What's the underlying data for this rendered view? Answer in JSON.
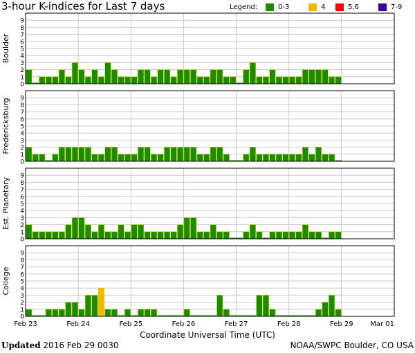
{
  "header": {
    "title": "3-hour K-indices for Last 7 days",
    "legend_title": "Legend:",
    "legend": [
      {
        "label": "0-3",
        "color": "#1a8c00"
      },
      {
        "label": "4",
        "color": "#f5b800"
      },
      {
        "label": "5,6",
        "color": "#ff0000"
      },
      {
        "label": "7-9",
        "color": "#3d0099"
      }
    ]
  },
  "footer": {
    "updated_label": "Updated",
    "updated_value": "2016 Feb 29 0030",
    "credit": "NOAA/SWPC Boulder, CO USA"
  },
  "chart_data": {
    "type": "bar",
    "xlabel": "Coordinate Universal Time (UTC)",
    "x_tick_labels": [
      "Feb 23",
      "Feb 24",
      "Feb 25",
      "Feb 26",
      "Feb 27",
      "Feb 28",
      "Feb 29",
      "Mar 01"
    ],
    "y_ticks": [
      0,
      1,
      2,
      3,
      4,
      5,
      6,
      7,
      8,
      9
    ],
    "ylim": [
      0,
      9
    ],
    "bars_per_day": 8,
    "grid": true,
    "panels": [
      {
        "ylabel": "Boulder",
        "values": [
          2,
          0,
          1,
          1,
          1,
          2,
          1,
          3,
          2,
          1,
          2,
          1,
          3,
          2,
          1,
          1,
          1,
          2,
          2,
          1,
          2,
          2,
          1,
          2,
          2,
          2,
          1,
          1,
          2,
          2,
          1,
          1,
          0,
          2,
          3,
          1,
          1,
          2,
          1,
          1,
          1,
          1,
          2,
          2,
          2,
          2,
          1,
          1
        ]
      },
      {
        "ylabel": "Fredericksburg",
        "values": [
          2,
          1,
          1,
          0,
          1,
          2,
          2,
          2,
          2,
          2,
          1,
          1,
          2,
          2,
          1,
          1,
          1,
          2,
          2,
          1,
          1,
          2,
          2,
          2,
          2,
          2,
          1,
          1,
          2,
          2,
          1,
          0,
          0,
          1,
          2,
          1,
          1,
          1,
          1,
          1,
          1,
          1,
          2,
          1,
          2,
          1,
          1,
          0
        ]
      },
      {
        "ylabel": "Est. Planetary",
        "values": [
          2,
          1,
          1,
          1,
          1,
          1,
          2,
          3,
          3,
          2,
          1,
          2,
          1,
          1,
          2,
          1,
          2,
          2,
          1,
          1,
          1,
          1,
          1,
          2,
          3,
          3,
          1,
          1,
          2,
          1,
          1,
          0,
          0,
          1,
          2,
          1,
          0,
          1,
          1,
          1,
          1,
          1,
          2,
          1,
          1,
          0,
          1,
          1
        ]
      },
      {
        "ylabel": "College",
        "values": [
          1,
          0,
          0,
          1,
          1,
          1,
          2,
          2,
          1,
          3,
          3,
          4,
          1,
          1,
          0,
          1,
          0,
          1,
          1,
          1,
          0,
          0,
          0,
          0,
          1,
          0,
          0,
          0,
          0,
          3,
          1,
          0,
          0,
          0,
          0,
          3,
          3,
          1,
          0,
          0,
          0,
          0,
          0,
          0,
          1,
          2,
          3,
          1
        ]
      }
    ]
  }
}
